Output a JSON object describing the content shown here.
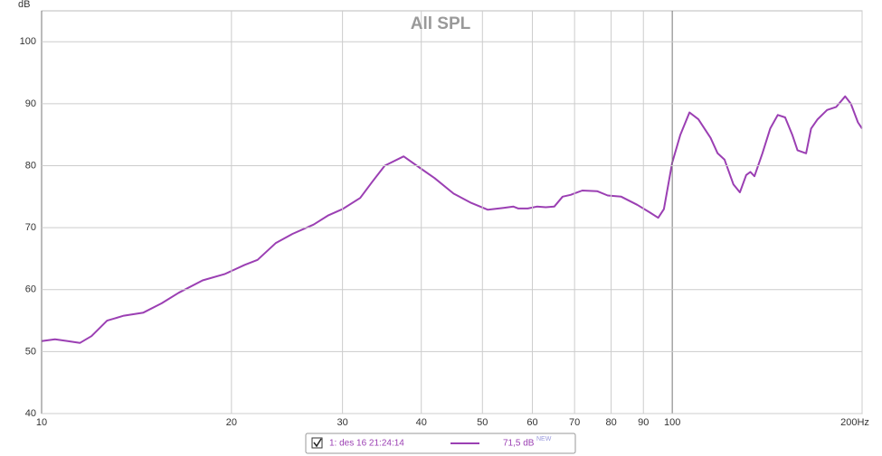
{
  "chart_data": {
    "type": "line",
    "title": "All SPL",
    "y_label": "dB",
    "x": [
      10,
      10.5,
      11,
      11.5,
      12,
      12.7,
      13.5,
      14.5,
      15.5,
      16.5,
      18,
      19.5,
      21,
      22,
      23.5,
      25,
      27,
      28.5,
      30,
      32,
      33.5,
      35,
      37.5,
      40,
      42,
      45,
      48,
      51,
      54,
      56,
      57,
      59,
      61,
      63,
      65,
      67,
      69,
      72,
      76,
      79,
      83,
      88,
      92,
      95,
      97,
      100,
      103,
      106.5,
      110,
      115,
      118,
      121,
      125,
      128,
      131,
      133,
      135,
      139,
      143,
      147,
      151,
      155,
      158,
      163,
      166,
      170,
      176,
      182,
      188,
      192,
      197,
      200
    ],
    "series": [
      {
        "name": "1: des 16 21:24:14",
        "color": "#9b3fb3",
        "values": [
          51.7,
          52,
          51.7,
          51.4,
          52.5,
          55,
          55.8,
          56.3,
          57.8,
          59.5,
          61.5,
          62.5,
          64,
          64.8,
          67.5,
          69,
          70.5,
          72,
          73,
          74.8,
          77.5,
          80,
          81.5,
          79.5,
          78,
          75.5,
          74,
          72.9,
          73.2,
          73.4,
          73.1,
          73.1,
          73.4,
          73.3,
          73.4,
          75,
          75.3,
          76,
          75.9,
          75.2,
          75,
          73.7,
          72.5,
          71.6,
          73,
          80.5,
          85,
          88.6,
          87.5,
          84.5,
          82,
          81,
          77,
          75.7,
          78.5,
          79,
          78.3,
          82,
          86,
          88.2,
          87.8,
          85,
          82.5,
          82,
          86,
          87.5,
          89,
          89.5,
          91.2,
          90,
          87,
          86
        ]
      }
    ],
    "legend_value": "71,5 dB",
    "legend_badge": "NEW",
    "xlim": [
      10,
      200
    ],
    "xscale": "log",
    "xticks": [
      10,
      20,
      30,
      40,
      50,
      60,
      70,
      80,
      90,
      100,
      {
        "value": 200,
        "label": "200Hz"
      }
    ],
    "ylim": [
      40,
      105
    ],
    "yticks": [
      40,
      50,
      60,
      70,
      80,
      90,
      100
    ],
    "grid": true
  }
}
